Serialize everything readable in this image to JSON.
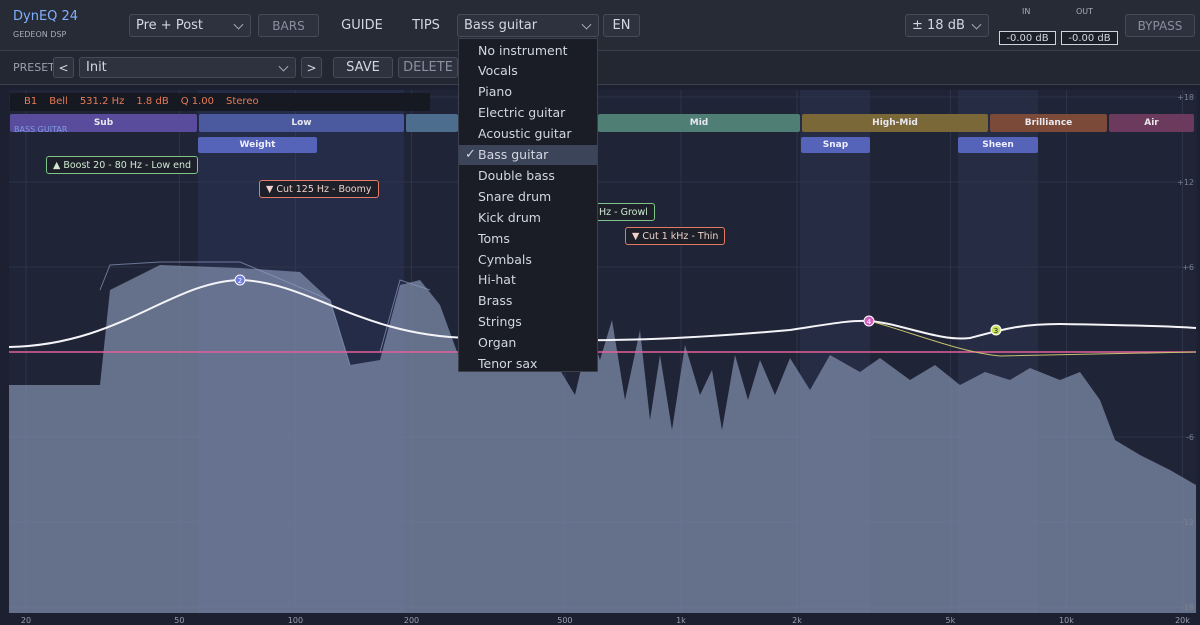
{
  "header": {
    "title": "DynEQ 24",
    "subtitle": "GEDEON DSP",
    "mode": "Pre + Post",
    "bars": "BARS",
    "guide": "GUIDE",
    "tips": "TIPS",
    "instrument": "Bass guitar",
    "language": "EN",
    "range": "± 18 dB",
    "in_label": "IN",
    "in_value": "-0.00 dB",
    "out_label": "OUT",
    "out_value": "-0.00 dB",
    "bypass": "BYPASS"
  },
  "preset": {
    "label": "PRESET",
    "prev": "<",
    "name": "Init",
    "next": ">",
    "save": "SAVE",
    "delete": "DELETE"
  },
  "band_info": [
    "B1",
    "Bell",
    "531.2 Hz",
    "1.8 dB",
    "Q 1.00",
    "Stereo"
  ],
  "instrument_label": "BASS GUITAR",
  "ranges": [
    "Sub",
    "Low",
    "Mid",
    "High-Mid",
    "Brilliance",
    "Air"
  ],
  "tags": [
    "Weight",
    "Snap",
    "Sheen"
  ],
  "annotations": [
    "▲ Boost  20 - 80 Hz  -  Low end",
    "▼ Cut  125 Hz  -  Boomy",
    "Hz  -  Growl",
    "▼ Cut  1 kHz  -  Thin"
  ],
  "nodes": [
    "2",
    "4",
    "3"
  ],
  "menu": {
    "items": [
      "No instrument",
      "Vocals",
      "Piano",
      "Electric guitar",
      "Acoustic guitar",
      "Bass guitar",
      "Double bass",
      "Snare drum",
      "Kick drum",
      "Toms",
      "Cymbals",
      "Hi-hat",
      "Brass",
      "Strings",
      "Organ",
      "Tenor sax"
    ],
    "selected": "Bass guitar",
    "check": "✓"
  },
  "db_scale": [
    {
      "value": 18,
      "label": "+18"
    },
    {
      "value": 12,
      "label": "+12"
    },
    {
      "value": 6,
      "label": "+6"
    },
    -6,
    -12,
    -18
  ],
  "freq_scale": [
    20,
    50,
    100,
    200,
    500,
    {
      "value": 1000,
      "label": "1k"
    },
    {
      "value": 2000,
      "label": "2k"
    },
    {
      "value": 5000,
      "label": "5k"
    },
    {
      "value": 10000,
      "label": "10k"
    },
    {
      "value": 20000,
      "label": "20k"
    }
  ]
}
